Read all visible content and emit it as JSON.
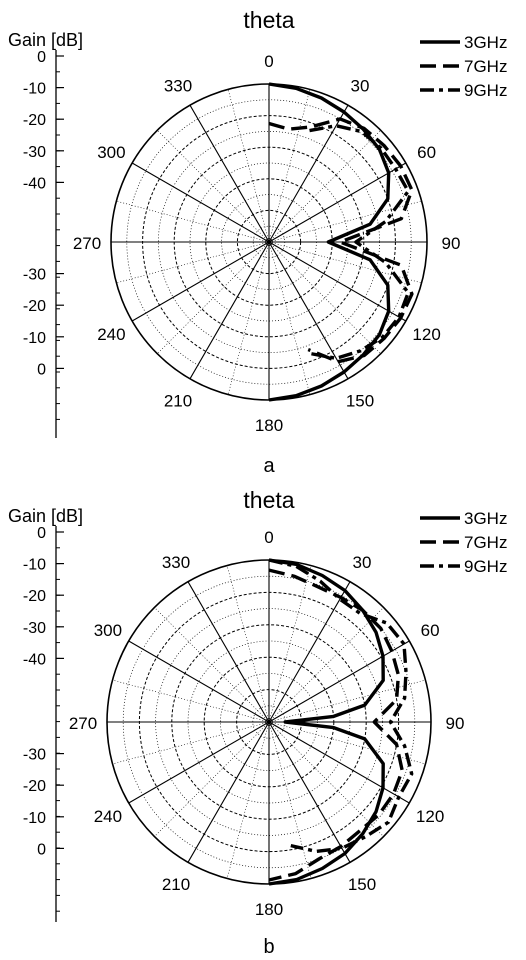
{
  "chart_data": [
    {
      "type": "polar-line",
      "panel_label": "a",
      "title": "theta",
      "r_axis_label": "Gain [dB]",
      "r_ticks_left": [
        "0",
        "-10",
        "-20",
        "-30",
        "-40"
      ],
      "r_ticks_lower": [
        "-30",
        "-20",
        "-10",
        "0"
      ],
      "angle_labels": [
        "0",
        "30",
        "60",
        "90",
        "120",
        "150",
        "180",
        "210",
        "240",
        "270",
        "300",
        "330"
      ],
      "r_range_db": [
        -40,
        0
      ],
      "angle_unit": "deg",
      "legend_position": "top-right",
      "series": [
        {
          "name": "3GHz",
          "style": "solid",
          "theta": [
            0,
            10,
            20,
            30,
            40,
            50,
            60,
            70,
            80,
            90,
            100,
            110,
            120,
            130,
            140,
            150,
            160,
            170,
            180
          ],
          "gain_db": [
            0,
            -0.5,
            -1.2,
            -2.0,
            -2.8,
            -3.5,
            -5.0,
            -8.0,
            -14.0,
            -25.0,
            -14.0,
            -8.0,
            -5.0,
            -3.5,
            -2.8,
            -2.0,
            -1.2,
            -0.5,
            0
          ]
        },
        {
          "name": "7GHz",
          "style": "dash",
          "theta": [
            0,
            10,
            20,
            30,
            40,
            50,
            60,
            70,
            80,
            90,
            100,
            110,
            120,
            130,
            140,
            150,
            160
          ],
          "gain_db": [
            -10.0,
            -11.0,
            -9.0,
            -4.0,
            -2.5,
            -2.0,
            -1.5,
            -1.5,
            -6.0,
            -22.0,
            -6.0,
            -1.5,
            -1.5,
            -2.0,
            -2.5,
            -5.0,
            -11.0
          ]
        },
        {
          "name": "9GHz",
          "style": "dash-dot",
          "theta": [
            20,
            30,
            40,
            50,
            60,
            70,
            80,
            90,
            100,
            110,
            120,
            130,
            140,
            150,
            160
          ],
          "gain_db": [
            -10.0,
            -6.0,
            -3.5,
            -3.0,
            -3.0,
            -2.5,
            -10.0,
            -18.0,
            -10.0,
            -2.5,
            -2.0,
            -2.5,
            -4.0,
            -6.0,
            -10.0
          ]
        }
      ]
    },
    {
      "type": "polar-line",
      "panel_label": "b",
      "title": "theta",
      "r_axis_label": "Gain [dB]",
      "r_ticks_left": [
        "0",
        "-10",
        "-20",
        "-30",
        "-40"
      ],
      "r_ticks_lower": [
        "-30",
        "-20",
        "-10",
        "0"
      ],
      "angle_labels": [
        "0",
        "30",
        "60",
        "90",
        "120",
        "150",
        "180",
        "210",
        "240",
        "270",
        "300",
        "330"
      ],
      "r_range_db": [
        -40,
        0
      ],
      "angle_unit": "deg",
      "legend_position": "top-right",
      "series": [
        {
          "name": "3GHz",
          "style": "solid",
          "theta": [
            0,
            10,
            20,
            30,
            40,
            50,
            60,
            70,
            80,
            85,
            90,
            95,
            100,
            110,
            120,
            130,
            140,
            150,
            160,
            170,
            180
          ],
          "gain_db": [
            0,
            -0.5,
            -1.5,
            -2.5,
            -4.0,
            -5.5,
            -7.5,
            -10.0,
            -16.0,
            -24.0,
            -36.0,
            -24.0,
            -16.0,
            -10.0,
            -7.5,
            -5.5,
            -4.0,
            -2.5,
            -1.5,
            -0.5,
            0
          ]
        },
        {
          "name": "7GHz",
          "style": "dash",
          "theta": [
            0,
            10,
            20,
            30,
            40,
            50,
            60,
            70,
            80,
            90,
            100,
            110,
            120,
            130,
            140,
            150,
            160,
            170,
            180
          ],
          "gain_db": [
            -2.5,
            -3.5,
            -4.5,
            -4.5,
            -4.0,
            -4.0,
            -5.0,
            -6.0,
            -8.0,
            -14.0,
            -8.0,
            -5.0,
            -4.5,
            -4.5,
            -5.0,
            -4.5,
            -4.0,
            -2.0,
            -1.0
          ]
        },
        {
          "name": "9GHz",
          "style": "dash-dot",
          "theta": [
            0,
            10,
            20,
            30,
            40,
            50,
            60,
            70,
            80,
            90,
            100,
            110,
            120,
            130,
            140,
            150,
            160,
            170
          ],
          "gain_db": [
            0,
            -1.0,
            -3.0,
            -5.0,
            -5.0,
            -2.0,
            -1.5,
            -4.0,
            -6.0,
            -10.0,
            -6.0,
            -2.5,
            -3.0,
            -1.5,
            -3.0,
            -4.0,
            -6.0,
            -9.0
          ]
        }
      ]
    }
  ]
}
